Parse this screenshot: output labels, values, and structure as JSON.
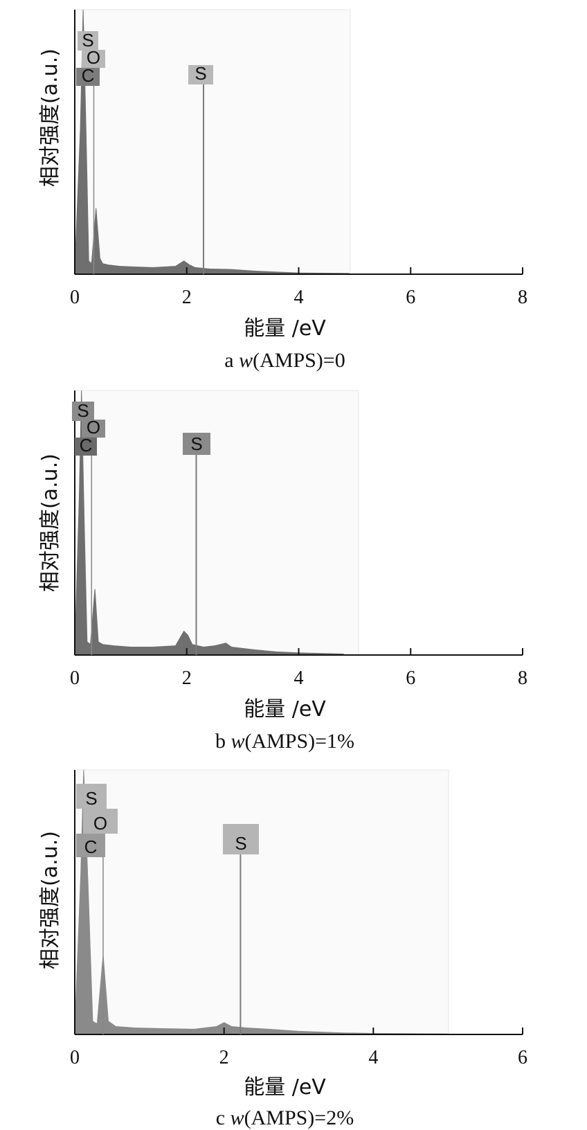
{
  "chart_data": [
    {
      "type": "area",
      "caption_letter": "a",
      "caption_var": "w",
      "caption_rest": "(AMPS)=0",
      "xlabel": "能量 /eV",
      "ylabel": "相对强度(a.u.)",
      "xlim": [
        0,
        8
      ],
      "xticks": [
        "0",
        "2",
        "4",
        "6",
        "8"
      ],
      "ylim": [
        0,
        1
      ],
      "grid": false,
      "colors": {
        "spectrum": "#6f6f6f",
        "label_box": "#b8b8b8",
        "label_box_dark": "#7c7c7c",
        "panel_bg": "#fafafa"
      },
      "peak_labels": [
        {
          "text": "S",
          "x": 0.16,
          "line": false
        },
        {
          "text": "O",
          "x": 0.34,
          "line": true
        },
        {
          "text": "C",
          "x": 0.22,
          "line": false
        },
        {
          "text": "S",
          "x": 2.3,
          "line": true
        }
      ],
      "series": [
        {
          "x": [
            0.0,
            0.1,
            0.15,
            0.2,
            0.25,
            0.3,
            0.38,
            0.45,
            0.5,
            0.6,
            0.8,
            1.0,
            1.4,
            1.8,
            1.95,
            2.05,
            2.15,
            2.4,
            2.8,
            3.2,
            3.6,
            4.0,
            4.9
          ],
          "y": [
            0.02,
            0.55,
            1.0,
            0.55,
            0.05,
            0.04,
            0.25,
            0.06,
            0.04,
            0.035,
            0.03,
            0.028,
            0.025,
            0.03,
            0.05,
            0.035,
            0.025,
            0.02,
            0.018,
            0.012,
            0.008,
            0.005,
            0.003
          ]
        }
      ]
    },
    {
      "type": "area",
      "caption_letter": "b",
      "caption_var": "w",
      "caption_rest": "(AMPS)=1%",
      "xlabel": "能量 /eV",
      "ylabel": "相对强度(a.u.)",
      "xlim": [
        0,
        8
      ],
      "xticks": [
        "0",
        "2",
        "4",
        "6",
        "8"
      ],
      "ylim": [
        0,
        1
      ],
      "grid": false,
      "colors": {
        "spectrum": "#6f6f6f",
        "label_box": "#8a8a8a",
        "label_box_dark": "#6a6a6a",
        "panel_bg": "#fafafa"
      },
      "peak_labels": [
        {
          "text": "S",
          "x": 0.12,
          "line": false
        },
        {
          "text": "O",
          "x": 0.3,
          "line": true
        },
        {
          "text": "C",
          "x": 0.16,
          "line": false
        },
        {
          "text": "S",
          "x": 2.17,
          "line": true
        }
      ],
      "series": [
        {
          "x": [
            0.0,
            0.08,
            0.12,
            0.17,
            0.22,
            0.28,
            0.36,
            0.42,
            0.5,
            0.7,
            1.0,
            1.4,
            1.8,
            1.95,
            2.02,
            2.1,
            2.3,
            2.5,
            2.7,
            2.8,
            3.2,
            3.6,
            4.0,
            4.8
          ],
          "y": [
            0.02,
            0.6,
            1.0,
            0.5,
            0.05,
            0.04,
            0.25,
            0.05,
            0.04,
            0.035,
            0.03,
            0.03,
            0.035,
            0.09,
            0.075,
            0.04,
            0.03,
            0.035,
            0.045,
            0.03,
            0.02,
            0.012,
            0.008,
            0.004
          ]
        }
      ]
    },
    {
      "type": "area",
      "caption_letter": "c",
      "caption_var": "w",
      "caption_rest": "(AMPS)=2%",
      "xlabel": "能量 /eV",
      "ylabel": "相对强度(a.u.)",
      "xlim": [
        0,
        6
      ],
      "xticks": [
        "0",
        "2",
        "4",
        "6"
      ],
      "ylim": [
        0,
        1
      ],
      "grid": false,
      "colors": {
        "spectrum": "#8a8a8a",
        "label_box": "#b5b5b5",
        "label_box_dark": "#9a9a9a",
        "panel_bg": "#fafafa"
      },
      "peak_labels": [
        {
          "text": "S",
          "x": 0.18,
          "line": false
        },
        {
          "text": "O",
          "x": 0.38,
          "line": true
        },
        {
          "text": "C",
          "x": 0.14,
          "line": false
        },
        {
          "text": "S",
          "x": 2.22,
          "line": true
        }
      ],
      "series": [
        {
          "x": [
            0.0,
            0.08,
            0.12,
            0.18,
            0.24,
            0.3,
            0.38,
            0.45,
            0.55,
            0.8,
            1.2,
            1.6,
            1.9,
            2.0,
            2.1,
            2.3,
            2.6,
            3.0,
            3.6,
            4.0,
            5.0
          ],
          "y": [
            0.02,
            0.6,
            1.0,
            0.55,
            0.05,
            0.04,
            0.3,
            0.05,
            0.03,
            0.025,
            0.022,
            0.02,
            0.03,
            0.045,
            0.03,
            0.025,
            0.02,
            0.012,
            0.006,
            0.004,
            0.002
          ]
        }
      ]
    }
  ]
}
